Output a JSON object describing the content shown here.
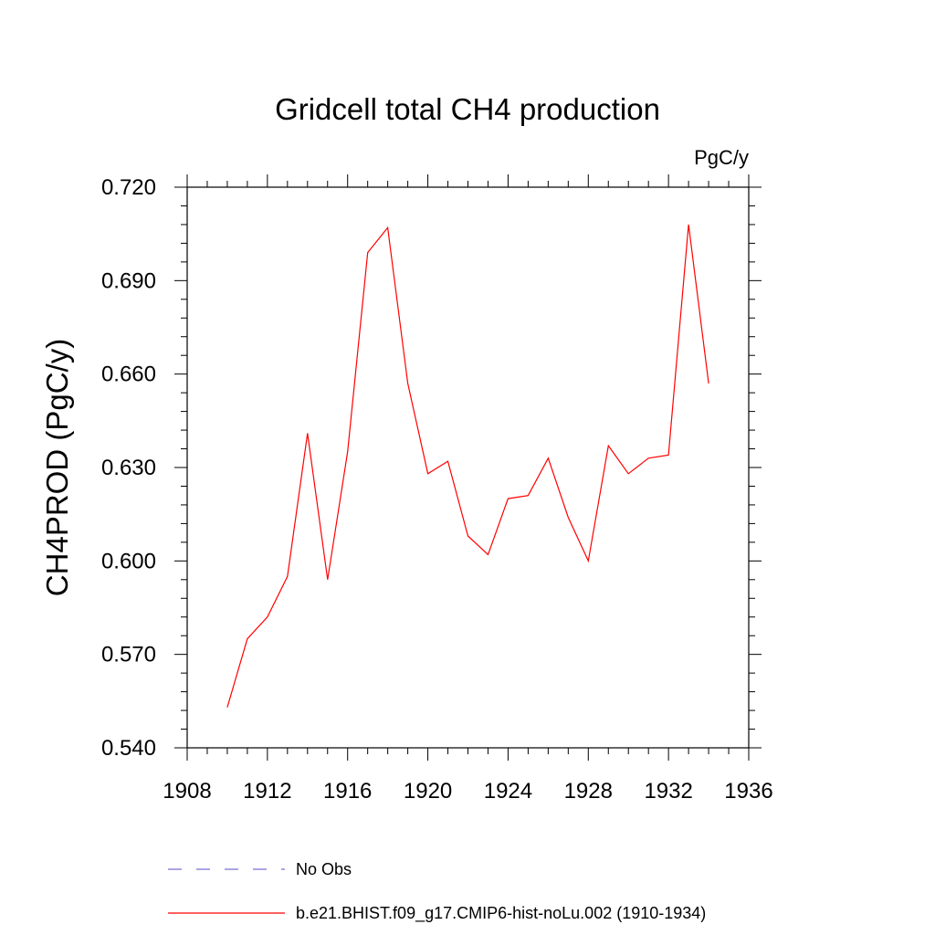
{
  "chart_data": {
    "type": "line",
    "title": "Gridcell total CH4 production",
    "units_label": "PgC/y",
    "xlabel": "",
    "ylabel": "CH4PROD  (PgC/y)",
    "xlim": [
      1908,
      1936
    ],
    "ylim": [
      0.54,
      0.72
    ],
    "x_ticks": [
      1908,
      1912,
      1916,
      1920,
      1924,
      1928,
      1932,
      1936
    ],
    "x_tick_labels": [
      "1908",
      "1912",
      "1916",
      "1920",
      "1924",
      "1928",
      "1932",
      "1936"
    ],
    "y_ticks": [
      0.54,
      0.57,
      0.6,
      0.63,
      0.66,
      0.69,
      0.72
    ],
    "y_tick_labels": [
      "0.540",
      "0.570",
      "0.600",
      "0.630",
      "0.660",
      "0.690",
      "0.720"
    ],
    "grid": false,
    "legend_position": "bottom",
    "series": [
      {
        "name": "b.e21.BHIST.f09_g17.CMIP6-hist-noLu.002 (1910-1934)",
        "color": "#ff0000",
        "style": "solid",
        "x": [
          1910,
          1911,
          1912,
          1913,
          1914,
          1915,
          1916,
          1917,
          1918,
          1919,
          1920,
          1921,
          1922,
          1923,
          1924,
          1925,
          1926,
          1927,
          1928,
          1929,
          1930,
          1931,
          1932,
          1933,
          1934
        ],
        "y": [
          0.553,
          0.575,
          0.582,
          0.595,
          0.641,
          0.594,
          0.635,
          0.699,
          0.707,
          0.657,
          0.628,
          0.632,
          0.608,
          0.602,
          0.62,
          0.621,
          0.633,
          0.614,
          0.6,
          0.637,
          0.628,
          0.633,
          0.634,
          0.708,
          0.657
        ]
      }
    ],
    "legend": [
      {
        "label": "No Obs",
        "color": "#7b6fd6",
        "style": "dashed"
      },
      {
        "label": "b.e21.BHIST.f09_g17.CMIP6-hist-noLu.002 (1910-1934)",
        "color": "#ff0000",
        "style": "solid"
      }
    ]
  }
}
